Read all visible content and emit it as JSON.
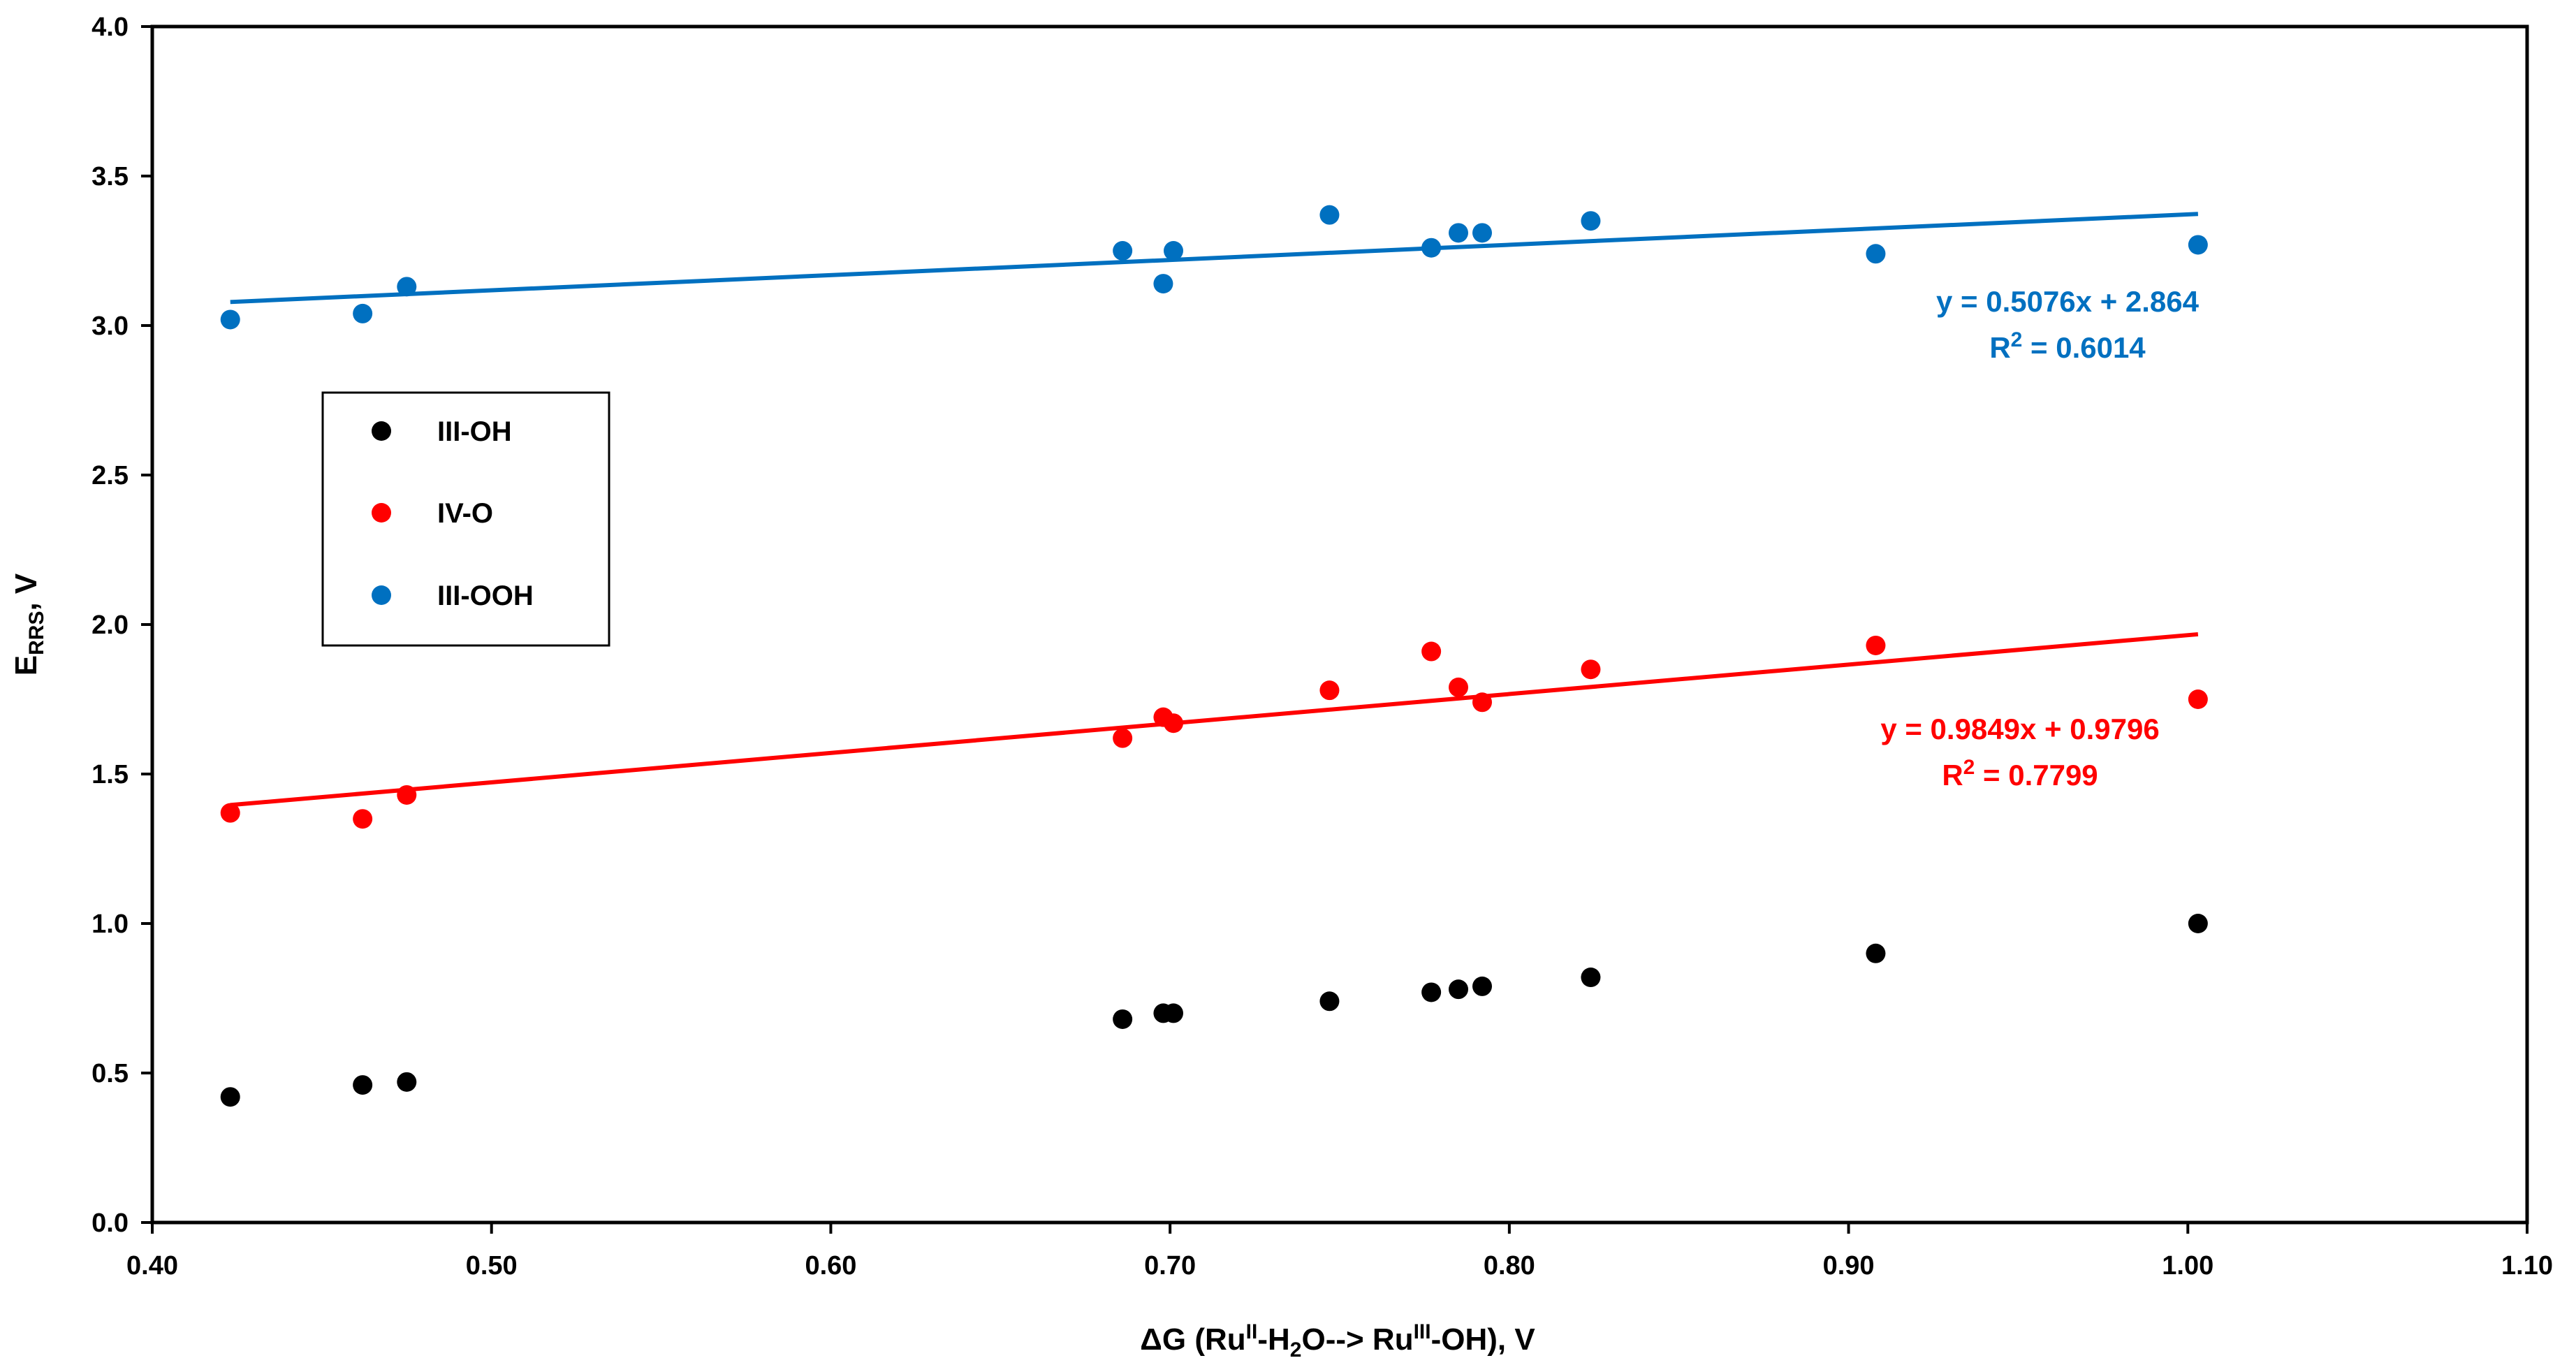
{
  "chart_data": {
    "type": "scatter",
    "title": "",
    "xlabel": {
      "main": "ΔG (Ru",
      "sup1": "II",
      "mid1": "-H",
      "sub1": "2",
      "mid2": "O--> Ru",
      "sup2": "III",
      "end": "-OH), V"
    },
    "ylabel": {
      "main": "E",
      "sub": "RRS",
      "end": ", V"
    },
    "xlim": [
      0.4,
      1.1
    ],
    "ylim": [
      0.0,
      4.0
    ],
    "xticks": [
      "0.40",
      "0.50",
      "0.60",
      "0.70",
      "0.80",
      "0.90",
      "1.00",
      "1.10"
    ],
    "yticks": [
      "0.0",
      "0.5",
      "1.0",
      "1.5",
      "2.0",
      "2.5",
      "3.0",
      "3.5",
      "4.0"
    ],
    "grid": false,
    "legend_position": "left-middle",
    "series": [
      {
        "name": "III-OH",
        "color": "#000000",
        "x": [
          0.423,
          0.462,
          0.475,
          0.686,
          0.698,
          0.701,
          0.747,
          0.777,
          0.785,
          0.792,
          0.824,
          0.908,
          1.003
        ],
        "y": [
          0.42,
          0.46,
          0.47,
          0.68,
          0.7,
          0.7,
          0.74,
          0.77,
          0.78,
          0.79,
          0.82,
          0.9,
          1.0
        ]
      },
      {
        "name": "IV-O",
        "color": "#ff0000",
        "x": [
          0.423,
          0.462,
          0.475,
          0.686,
          0.698,
          0.701,
          0.747,
          0.777,
          0.785,
          0.792,
          0.824,
          0.908,
          1.003
        ],
        "y": [
          1.37,
          1.35,
          1.43,
          1.62,
          1.69,
          1.67,
          1.78,
          1.91,
          1.79,
          1.74,
          1.85,
          1.93,
          1.75
        ],
        "trendline": {
          "slope": 0.9849,
          "intercept": 0.9796,
          "x_range": [
            0.423,
            1.003
          ],
          "equation": "y = 0.9849x + 0.9796",
          "r2_label": "R",
          "r2_sup": "2",
          "r2_value": " = 0.7799"
        }
      },
      {
        "name": "III-OOH",
        "color": "#0070c0",
        "x": [
          0.423,
          0.462,
          0.475,
          0.686,
          0.698,
          0.701,
          0.747,
          0.777,
          0.785,
          0.792,
          0.824,
          0.908,
          1.003
        ],
        "y": [
          3.02,
          3.04,
          3.13,
          3.25,
          3.14,
          3.25,
          3.37,
          3.26,
          3.31,
          3.31,
          3.35,
          3.24,
          3.27
        ],
        "trendline": {
          "slope": 0.5076,
          "intercept": 2.864,
          "x_range": [
            0.423,
            1.003
          ],
          "equation": "y = 0.5076x + 2.864",
          "r2_label": "R",
          "r2_sup": "2",
          "r2_value": " = 0.6014"
        }
      }
    ]
  }
}
